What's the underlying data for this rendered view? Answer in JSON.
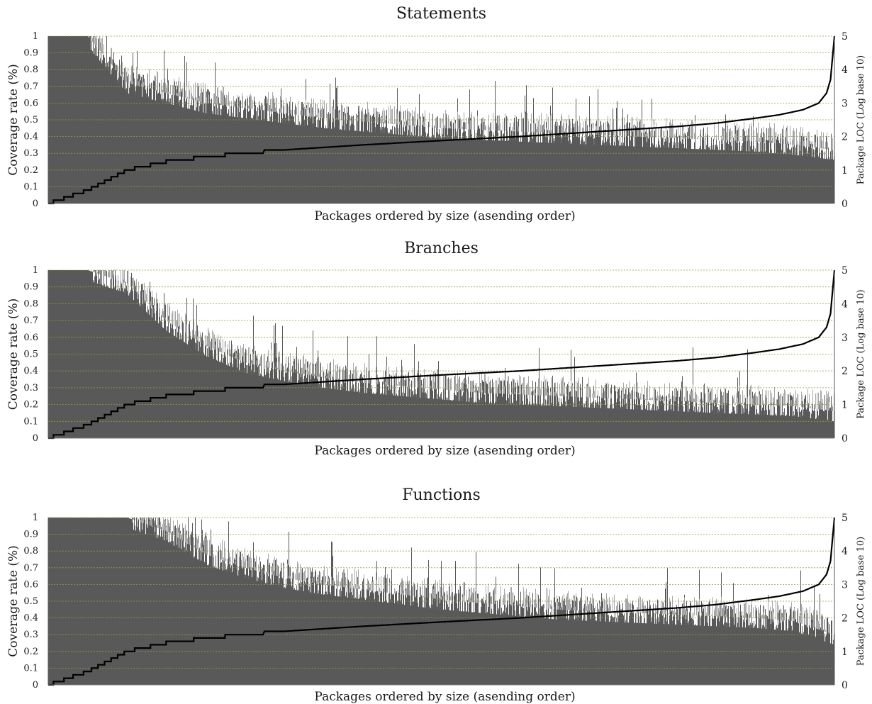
{
  "chart_data": [
    {
      "type": "bar",
      "title": "Statements",
      "xlabel": "Packages ordered by size (asending order)",
      "ylabel": "Coverage rate (%)",
      "y2label": "Package LOC (Log base 10)",
      "ylim": [
        0,
        1
      ],
      "y2lim": [
        0,
        5
      ],
      "yticks": [
        "0",
        "0.1",
        "0.2",
        "0.3",
        "0.4",
        "0.5",
        "0.6",
        "0.7",
        "0.8",
        "0.9",
        "1"
      ],
      "y2ticks": [
        "0",
        "1",
        "2",
        "3",
        "4",
        "5"
      ],
      "grid": true,
      "bar_color": "#595959",
      "line_color": "#000000",
      "grid_color": "#9a9a40",
      "series": [
        {
          "kind": "bars",
          "x": [
            0,
            0.05,
            0.1,
            0.15,
            0.2,
            0.25,
            0.3,
            0.35,
            0.4,
            0.45,
            0.5,
            0.55,
            0.6,
            0.65,
            0.7,
            0.75,
            0.8,
            0.85,
            0.9,
            0.95,
            1.0
          ],
          "values": [
            1.0,
            1.0,
            0.72,
            0.66,
            0.6,
            0.57,
            0.54,
            0.51,
            0.49,
            0.47,
            0.45,
            0.44,
            0.43,
            0.42,
            0.41,
            0.4,
            0.39,
            0.38,
            0.37,
            0.35,
            0.32
          ]
        },
        {
          "kind": "line",
          "axis": "right",
          "x": [
            0,
            0.05,
            0.1,
            0.15,
            0.2,
            0.3,
            0.4,
            0.5,
            0.6,
            0.7,
            0.8,
            0.85,
            0.9,
            0.93,
            0.96,
            0.98,
            0.99,
            0.995,
            1.0
          ],
          "values": [
            0,
            0.4,
            1.0,
            1.25,
            1.4,
            1.6,
            1.75,
            1.88,
            2.0,
            2.15,
            2.3,
            2.4,
            2.55,
            2.65,
            2.8,
            3.0,
            3.3,
            3.7,
            5.0
          ]
        }
      ]
    },
    {
      "type": "bar",
      "title": "Branches",
      "xlabel": "Packages ordered by size (asending order)",
      "ylabel": "Coverage rate (%)",
      "y2label": "Package LOC (Log base 10)",
      "ylim": [
        0,
        1
      ],
      "y2lim": [
        0,
        5
      ],
      "yticks": [
        "0",
        "0.1",
        "0.2",
        "0.3",
        "0.4",
        "0.5",
        "0.6",
        "0.7",
        "0.8",
        "0.9",
        "1"
      ],
      "y2ticks": [
        "0",
        "1",
        "2",
        "3",
        "4",
        "5"
      ],
      "grid": true,
      "bar_color": "#595959",
      "line_color": "#000000",
      "grid_color": "#9a9a40",
      "series": [
        {
          "kind": "bars",
          "x": [
            0,
            0.05,
            0.1,
            0.15,
            0.2,
            0.25,
            0.3,
            0.35,
            0.4,
            0.45,
            0.5,
            0.55,
            0.6,
            0.65,
            0.7,
            0.75,
            0.8,
            0.85,
            0.9,
            0.95,
            1.0
          ],
          "values": [
            1.0,
            1.0,
            0.92,
            0.7,
            0.55,
            0.45,
            0.4,
            0.36,
            0.33,
            0.31,
            0.29,
            0.27,
            0.26,
            0.25,
            0.24,
            0.23,
            0.22,
            0.21,
            0.2,
            0.19,
            0.16
          ]
        },
        {
          "kind": "line",
          "axis": "right",
          "x": [
            0,
            0.05,
            0.1,
            0.15,
            0.2,
            0.3,
            0.4,
            0.5,
            0.6,
            0.7,
            0.8,
            0.85,
            0.9,
            0.93,
            0.96,
            0.98,
            0.99,
            0.995,
            1.0
          ],
          "values": [
            0,
            0.4,
            1.0,
            1.25,
            1.4,
            1.6,
            1.75,
            1.88,
            2.0,
            2.15,
            2.3,
            2.4,
            2.55,
            2.65,
            2.8,
            3.0,
            3.3,
            3.7,
            5.0
          ]
        }
      ]
    },
    {
      "type": "bar",
      "title": "Functions",
      "xlabel": "Packages ordered by size (asending order)",
      "ylabel": "Coverage rate (%)",
      "y2label": "Package LOC (Log base 10)",
      "ylim": [
        0,
        1
      ],
      "y2lim": [
        0,
        5
      ],
      "yticks": [
        "0",
        "0.1",
        "0.2",
        "0.3",
        "0.4",
        "0.5",
        "0.6",
        "0.7",
        "0.8",
        "0.9",
        "1"
      ],
      "y2ticks": [
        "0",
        "1",
        "2",
        "3",
        "4",
        "5"
      ],
      "grid": true,
      "bar_color": "#595959",
      "line_color": "#000000",
      "grid_color": "#9a9a40",
      "series": [
        {
          "kind": "bars",
          "x": [
            0,
            0.05,
            0.1,
            0.15,
            0.2,
            0.25,
            0.3,
            0.35,
            0.4,
            0.45,
            0.5,
            0.55,
            0.6,
            0.65,
            0.7,
            0.75,
            0.8,
            0.85,
            0.9,
            0.95,
            1.0
          ],
          "values": [
            1.0,
            1.0,
            1.0,
            0.92,
            0.78,
            0.7,
            0.64,
            0.6,
            0.57,
            0.54,
            0.51,
            0.49,
            0.47,
            0.45,
            0.44,
            0.43,
            0.42,
            0.41,
            0.4,
            0.38,
            0.3
          ]
        },
        {
          "kind": "line",
          "axis": "right",
          "x": [
            0,
            0.05,
            0.1,
            0.15,
            0.2,
            0.3,
            0.4,
            0.5,
            0.6,
            0.7,
            0.8,
            0.85,
            0.9,
            0.93,
            0.96,
            0.98,
            0.99,
            0.995,
            1.0
          ],
          "values": [
            0,
            0.4,
            1.0,
            1.25,
            1.4,
            1.6,
            1.75,
            1.88,
            2.0,
            2.15,
            2.3,
            2.4,
            2.55,
            2.65,
            2.8,
            3.0,
            3.3,
            3.7,
            5.0
          ]
        }
      ]
    }
  ]
}
